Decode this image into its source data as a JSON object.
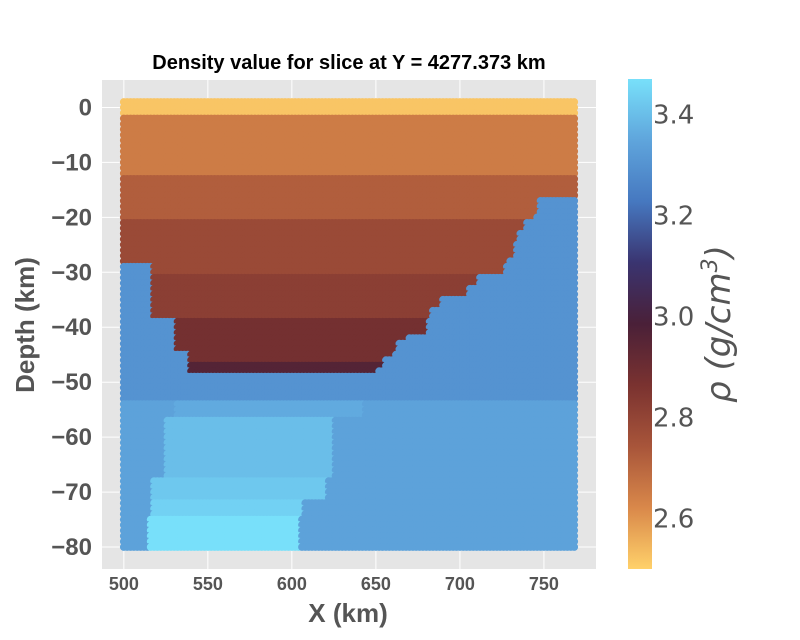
{
  "chart_data": {
    "type": "scatter",
    "title": "Density value for slice at Y = 4277.373 km",
    "xlabel": "X (km)",
    "ylabel": "Depth (km)",
    "xlim": [
      487,
      781
    ],
    "ylim": [
      -84,
      5
    ],
    "x_ticks": [
      "500",
      "550",
      "600",
      "650",
      "700",
      "750"
    ],
    "y_ticks": [
      "0",
      "−10",
      "−20",
      "−30",
      "−40",
      "−50",
      "−60",
      "−70",
      "−80"
    ],
    "grid": true,
    "colorbar": {
      "label": "ρ (g/cm³)",
      "label_main": "ρ (g/cm",
      "label_sup": "3",
      "label_close": ")",
      "range": [
        2.5,
        3.47
      ],
      "ticks": [
        "2.6",
        "2.8",
        "3.0",
        "3.2",
        "3.4"
      ],
      "colors": [
        "#ffd16a",
        "#d9884a",
        "#a8553a",
        "#7a3230",
        "#4a2038",
        "#3a3470",
        "#4678c0",
        "#5fa5dc",
        "#78e0fa"
      ]
    },
    "points_grid": {
      "x_start": 500,
      "x_end": 768,
      "x_step": 2,
      "y_start": 1,
      "y_end": -80,
      "y_step": -1
    },
    "layers": [
      {
        "top": 1.5,
        "bottom": -1.5,
        "value": 2.52
      },
      {
        "top": -1.5,
        "bottom": -12.5,
        "value": 2.65
      },
      {
        "top": -12.5,
        "bottom": -20.5,
        "value": 2.72
      },
      {
        "top": -20.5,
        "bottom": -30.5,
        "value": 2.78
      },
      {
        "top": -30.5,
        "bottom": -38.5,
        "value": 2.82
      },
      {
        "top": -38.5,
        "bottom": -46.5,
        "value": 2.88
      },
      {
        "top": -46.5,
        "bottom": -48.5,
        "value": 2.96
      }
    ],
    "basin_boundary": [
      {
        "depth": -2,
        "left": 500,
        "right": 768
      },
      {
        "depth": -16,
        "left": 500,
        "right": 768
      },
      {
        "depth": -17,
        "left": 500,
        "right": 747
      },
      {
        "depth": -20,
        "left": 500,
        "right": 744
      },
      {
        "depth": -21,
        "left": 500,
        "right": 739
      },
      {
        "depth": -23,
        "left": 500,
        "right": 735
      },
      {
        "depth": -25,
        "left": 500,
        "right": 733
      },
      {
        "depth": -28,
        "left": 500,
        "right": 728
      },
      {
        "depth": -29,
        "left": 518,
        "right": 726
      },
      {
        "depth": -31,
        "left": 518,
        "right": 710
      },
      {
        "depth": -33,
        "left": 518,
        "right": 704
      },
      {
        "depth": -35,
        "left": 518,
        "right": 688
      },
      {
        "depth": -37,
        "left": 518,
        "right": 682
      },
      {
        "depth": -39,
        "left": 532,
        "right": 680
      },
      {
        "depth": -42,
        "left": 532,
        "right": 669
      },
      {
        "depth": -43,
        "left": 532,
        "right": 663
      },
      {
        "depth": -45,
        "left": 540,
        "right": 660
      },
      {
        "depth": -46,
        "left": 540,
        "right": 655
      },
      {
        "depth": -48,
        "left": 540,
        "right": 651
      }
    ],
    "mantle_blocks": [
      {
        "top": -45,
        "bottom": -53.5,
        "x0": 500,
        "x1": 768,
        "value": 3.3
      },
      {
        "top": -53.5,
        "bottom": -56.5,
        "x0": 532,
        "x1": 642,
        "value": 3.36
      },
      {
        "top": -56.5,
        "bottom": -67.5,
        "x0": 526,
        "x1": 625,
        "value": 3.4
      },
      {
        "top": -67.5,
        "bottom": -71.5,
        "x0": 518,
        "x1": 620,
        "value": 3.42
      },
      {
        "top": -71.5,
        "bottom": -74.5,
        "x0": 518,
        "x1": 606,
        "value": 3.44
      },
      {
        "top": -74.5,
        "bottom": -80.5,
        "x0": 515,
        "x1": 604,
        "value": 3.47
      }
    ],
    "mantle_default_value": 3.3,
    "mantle_right_value": 3.34
  }
}
